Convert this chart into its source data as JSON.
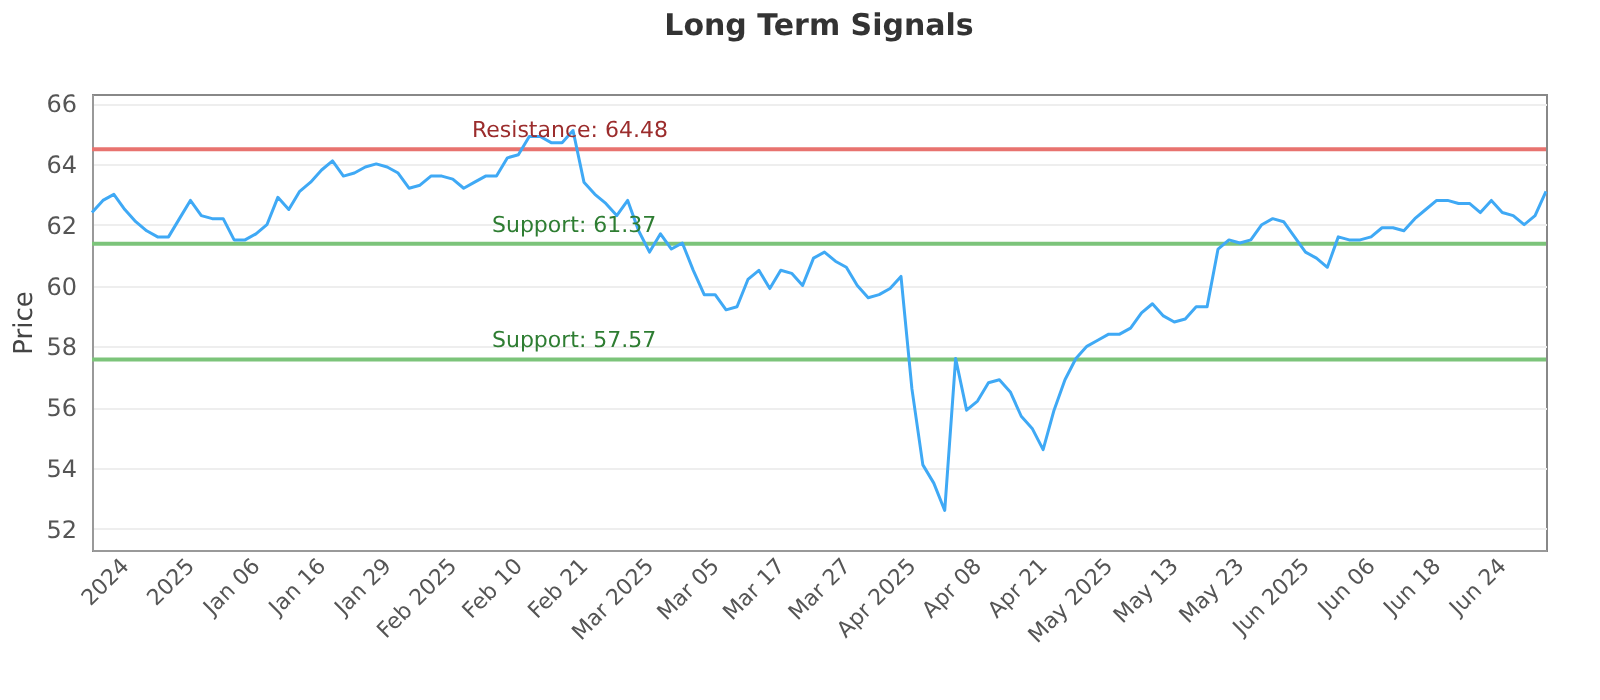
{
  "chart_data": {
    "type": "line",
    "title": "Long Term Signals",
    "ylabel": "Price",
    "categories": [
      null,
      null,
      null,
      "2024",
      null,
      null,
      null,
      null,
      null,
      "2025",
      null,
      null,
      null,
      null,
      null,
      "Jan 06",
      null,
      null,
      null,
      null,
      null,
      "Jan 16",
      null,
      null,
      null,
      null,
      null,
      "Jan 29",
      null,
      null,
      null,
      null,
      null,
      "Feb 2025",
      null,
      null,
      null,
      null,
      null,
      "Feb 10",
      null,
      null,
      null,
      null,
      null,
      "Feb 21",
      null,
      null,
      null,
      null,
      null,
      "Mar 2025",
      null,
      null,
      null,
      null,
      null,
      "Mar 05",
      null,
      null,
      null,
      null,
      null,
      "Mar 17",
      null,
      null,
      null,
      null,
      null,
      "Mar 27",
      null,
      null,
      null,
      null,
      null,
      "Apr 2025",
      null,
      null,
      null,
      null,
      null,
      "Apr 08",
      null,
      null,
      null,
      null,
      null,
      "Apr 21",
      null,
      null,
      null,
      null,
      null,
      "May 2025",
      null,
      null,
      null,
      null,
      null,
      "May 13",
      null,
      null,
      null,
      null,
      null,
      "May 23",
      null,
      null,
      null,
      null,
      null,
      "Jun 2025",
      null,
      null,
      null,
      null,
      null,
      "Jun 06",
      null,
      null,
      null,
      null,
      null,
      "Jun 18",
      null,
      null,
      null,
      null,
      null,
      "Jun 24",
      null,
      null,
      null,
      null
    ],
    "series": [
      {
        "color": "#3fa9f5",
        "values": [
          62.4,
          62.8,
          63.0,
          62.5,
          62.1,
          61.8,
          61.6,
          61.6,
          62.2,
          62.8,
          62.3,
          62.2,
          62.2,
          61.5,
          61.5,
          61.7,
          62.0,
          62.9,
          62.5,
          63.1,
          63.4,
          63.8,
          64.1,
          63.6,
          63.7,
          63.9,
          64.0,
          63.9,
          63.7,
          63.2,
          63.3,
          63.6,
          63.6,
          63.5,
          63.2,
          63.4,
          63.6,
          63.6,
          64.2,
          64.3,
          64.9,
          64.9,
          64.7,
          64.7,
          65.1,
          63.4,
          63.0,
          62.7,
          62.3,
          62.8,
          61.8,
          61.1,
          61.7,
          61.2,
          61.4,
          60.5,
          59.7,
          59.7,
          59.2,
          59.3,
          60.2,
          60.5,
          59.9,
          60.5,
          60.4,
          60.0,
          60.9,
          61.1,
          60.8,
          60.6,
          60.0,
          59.6,
          59.7,
          59.9,
          60.3,
          56.6,
          54.1,
          53.5,
          52.6,
          57.6,
          55.9,
          56.2,
          56.8,
          56.9,
          56.5,
          55.7,
          55.3,
          54.6,
          55.9,
          56.9,
          57.6,
          58.0,
          58.2,
          58.4,
          58.4,
          58.6,
          59.1,
          59.4,
          59.0,
          58.8,
          58.9,
          59.3,
          59.3,
          61.2,
          61.5,
          61.4,
          61.5,
          62.0,
          62.2,
          62.1,
          61.6,
          61.1,
          60.9,
          60.6,
          61.6,
          61.5,
          61.5,
          61.6,
          61.9,
          61.9,
          61.8,
          62.2,
          62.5,
          62.8,
          62.8,
          62.7,
          62.7,
          62.4,
          62.8,
          62.4,
          62.3,
          62.0,
          62.3,
          63.1
        ]
      }
    ],
    "ylim": [
      51.3,
      66.3
    ],
    "yticks": [
      52,
      54,
      56,
      58,
      60,
      62,
      64,
      66
    ],
    "grid": "y",
    "ref_lines": [
      {
        "axis": "y",
        "value": 64.48,
        "label": "Resistance: 64.48",
        "color": "#e8736f"
      },
      {
        "axis": "y",
        "value": 61.37,
        "label": "Support: 61.37",
        "color": "#7cc47a"
      },
      {
        "axis": "y",
        "value": 57.57,
        "label": "Support: 57.57",
        "color": "#7cc47a"
      }
    ]
  }
}
